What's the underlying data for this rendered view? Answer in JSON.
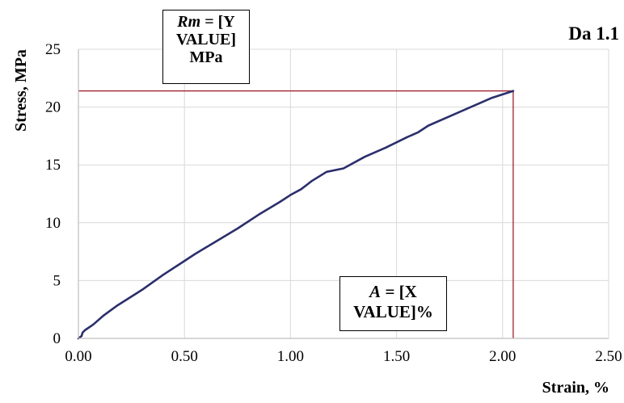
{
  "chart_data": {
    "type": "line",
    "title": "Da 1.1",
    "xlabel": "Strain, %",
    "ylabel": "Stress, MPa",
    "xlim": [
      0,
      2.5
    ],
    "ylim": [
      0,
      25
    ],
    "x_ticks": [
      "0.00",
      "0.50",
      "1.00",
      "1.50",
      "2.00",
      "2.50"
    ],
    "y_ticks": [
      "0",
      "5",
      "10",
      "15",
      "20",
      "25"
    ],
    "grid": true,
    "legend": "none",
    "series": [
      {
        "color": "#2b2f6b",
        "x": [
          0.0,
          0.015,
          0.02,
          0.03,
          0.07,
          0.12,
          0.18,
          0.24,
          0.3,
          0.4,
          0.5,
          0.55,
          0.65,
          0.75,
          0.85,
          0.95,
          1.0,
          1.05,
          1.1,
          1.17,
          1.25,
          1.35,
          1.45,
          1.55,
          1.6,
          1.65,
          1.75,
          1.85,
          1.95,
          2.05
        ],
        "y": [
          0.0,
          0.2,
          0.5,
          0.7,
          1.2,
          2.0,
          2.8,
          3.5,
          4.2,
          5.5,
          6.7,
          7.3,
          8.4,
          9.5,
          10.7,
          11.8,
          12.4,
          12.9,
          13.6,
          14.4,
          14.7,
          15.7,
          16.5,
          17.4,
          17.8,
          18.4,
          19.2,
          20.0,
          20.8,
          21.4
        ]
      }
    ],
    "reference_lines": {
      "color": "#a0202a",
      "horizontal_y": 21.4,
      "vertical_x": 2.05
    },
    "annotations": {
      "rm": {
        "var": "Rm",
        "line1": " = [Y",
        "line2": "VALUE]",
        "line3": "MPa"
      },
      "a": {
        "var": "A",
        "line1": " = [X",
        "line2": "VALUE]%"
      }
    }
  }
}
